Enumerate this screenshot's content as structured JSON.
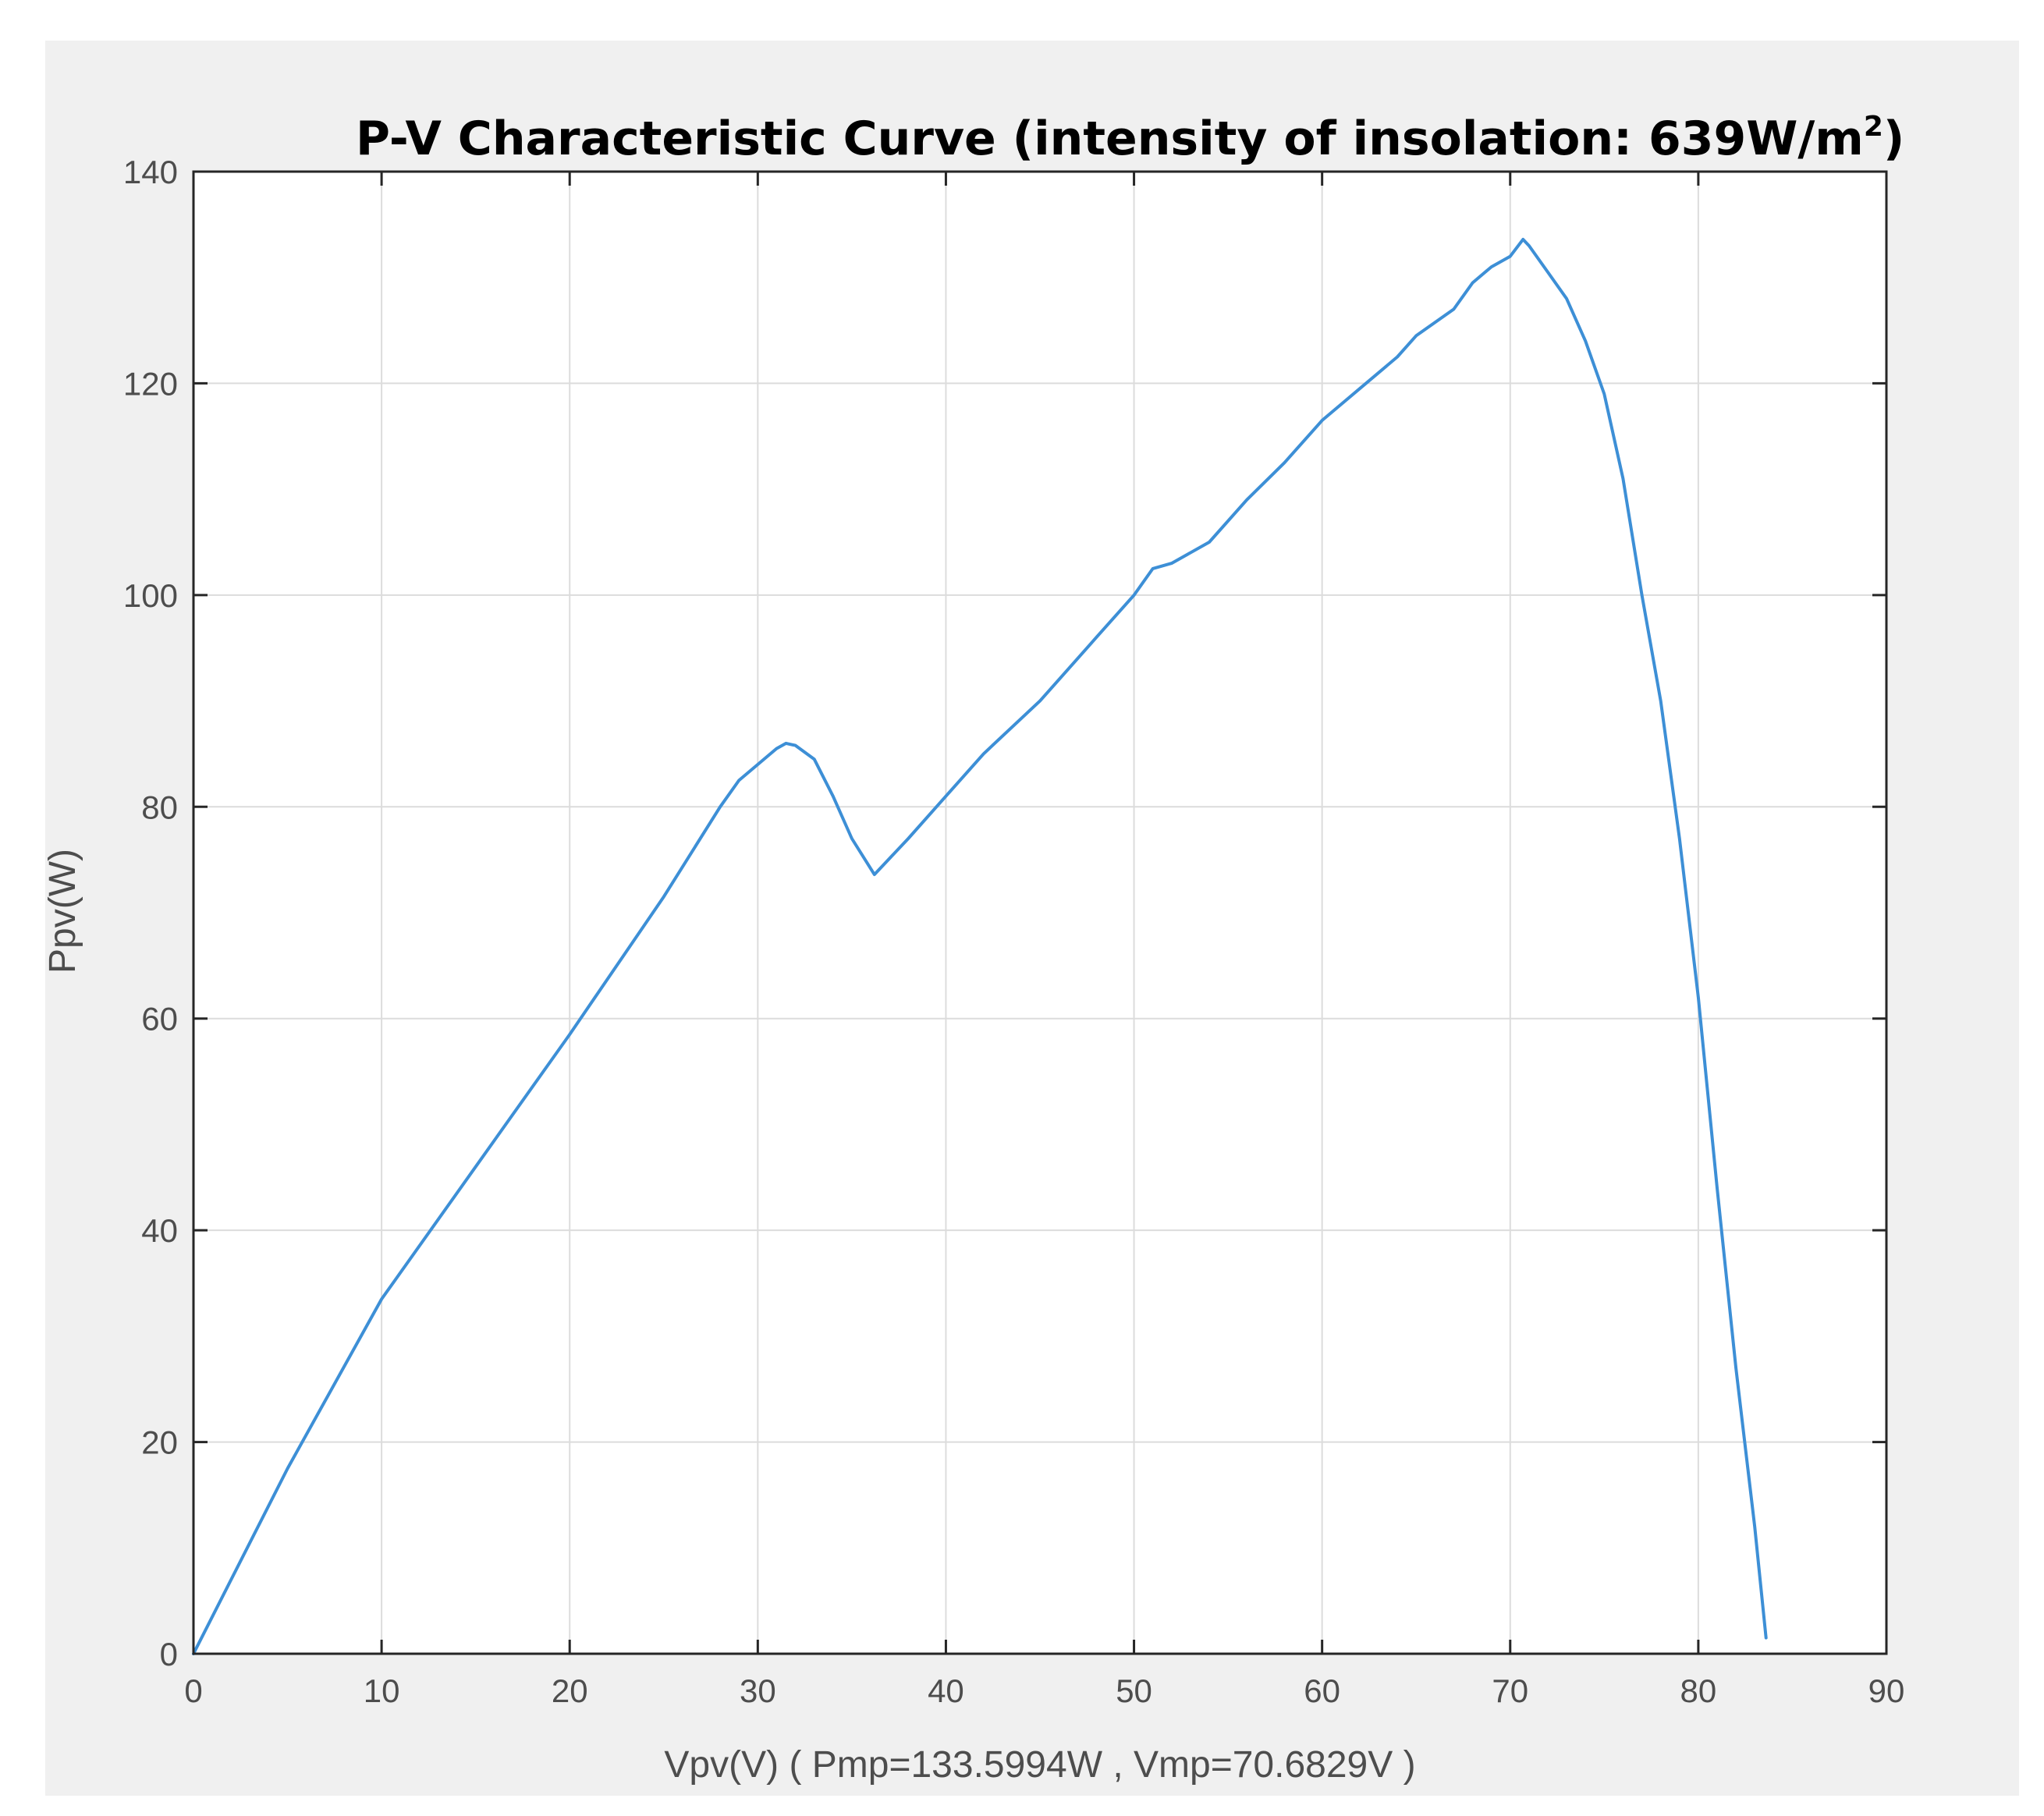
{
  "chart_data": {
    "type": "line",
    "title": "P-V Characteristic Curve (intensity of insolation: 639W/m",
    "title_superscript": "2",
    "title_suffix": ")",
    "xlabel": "Vpv(V) ( Pmp=133.5994W , Vmp=70.6829V )",
    "ylabel": "Ppv(W)",
    "xlim": [
      0,
      90
    ],
    "ylim": [
      0,
      140
    ],
    "x_ticks": [
      0,
      10,
      20,
      30,
      40,
      50,
      60,
      70,
      80,
      90
    ],
    "x_tick_labels": [
      "0",
      "10",
      "20",
      "30",
      "40",
      "50",
      "60",
      "70",
      "80",
      "90"
    ],
    "y_ticks": [
      0,
      20,
      40,
      60,
      80,
      100,
      120,
      140
    ],
    "y_tick_labels": [
      "0",
      "20",
      "40",
      "60",
      "80",
      "100",
      "120",
      "140"
    ],
    "grid": true,
    "series": [
      {
        "name": "P-V curve",
        "color": "#3d8fd6",
        "points": [
          [
            0,
            0
          ],
          [
            5,
            17.5
          ],
          [
            10,
            33.5
          ],
          [
            15,
            46
          ],
          [
            20,
            58.5
          ],
          [
            25,
            71.5
          ],
          [
            28,
            80
          ],
          [
            29,
            82.5
          ],
          [
            30,
            84
          ],
          [
            31,
            85.5
          ],
          [
            31.5,
            86
          ],
          [
            32,
            85.8
          ],
          [
            33,
            84.5
          ],
          [
            34,
            81
          ],
          [
            35,
            77
          ],
          [
            36.2,
            73.6
          ],
          [
            38,
            77
          ],
          [
            40,
            81
          ],
          [
            42,
            85
          ],
          [
            45,
            90
          ],
          [
            48,
            96
          ],
          [
            50,
            100
          ],
          [
            51,
            102.5
          ],
          [
            52,
            103
          ],
          [
            54,
            105
          ],
          [
            56,
            109
          ],
          [
            58,
            112.5
          ],
          [
            60,
            116.5
          ],
          [
            62,
            119.5
          ],
          [
            64,
            122.5
          ],
          [
            65,
            124.5
          ],
          [
            67,
            127
          ],
          [
            68,
            129.5
          ],
          [
            69,
            131
          ],
          [
            70,
            132
          ],
          [
            70.6829,
            133.5994
          ],
          [
            71,
            133
          ],
          [
            72,
            130.5
          ],
          [
            73,
            128
          ],
          [
            74,
            124
          ],
          [
            75,
            119
          ],
          [
            76,
            111
          ],
          [
            77,
            100
          ],
          [
            78,
            90
          ],
          [
            79,
            77
          ],
          [
            80,
            62
          ],
          [
            81,
            44
          ],
          [
            82,
            27
          ],
          [
            83,
            12
          ],
          [
            83.6,
            1.5
          ]
        ]
      }
    ]
  }
}
